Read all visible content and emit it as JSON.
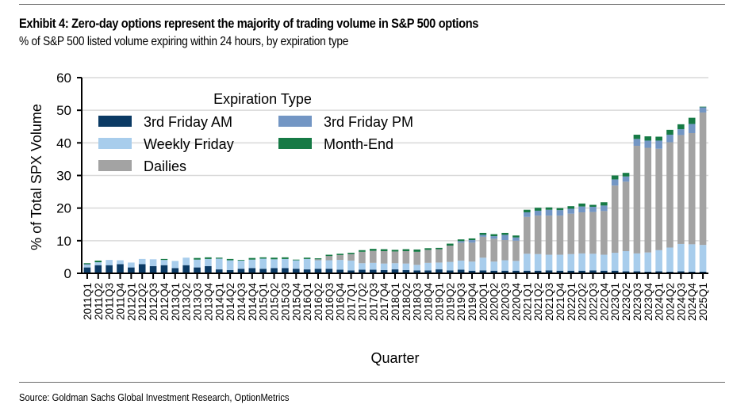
{
  "header": {
    "title": "Exhibit 4: Zero-day options represent the majority of trading volume in S&P 500 options",
    "subtitle": "% of S&P 500 listed volume expiring within 24 hours, by expiration type"
  },
  "footer": {
    "source": "Source: Goldman Sachs Global Investment Research, OptionMetrics"
  },
  "chart_data": {
    "type": "bar",
    "stacked": true,
    "title": "Exhibit 4: Zero-day options represent the majority of trading volume in S&P 500 options",
    "subtitle": "% of S&P 500 listed volume expiring within 24 hours, by expiration type",
    "xlabel": "Quarter",
    "ylabel": "% of Total SPX Volume",
    "ylim": [
      0,
      60
    ],
    "yticks": [
      0,
      10,
      20,
      30,
      40,
      50,
      60
    ],
    "grid": true,
    "legend": {
      "title": "Expiration Type",
      "placement": "top-left",
      "entries": [
        "3rd Friday AM",
        "3rd Friday PM",
        "Weekly Friday",
        "Month-End",
        "Dailies"
      ]
    },
    "colors": {
      "3rd Friday AM": "#0b3a64",
      "Weekly Friday": "#a8cdec",
      "Dailies": "#a3a3a3",
      "3rd Friday PM": "#7396c4",
      "Month-End": "#167a45"
    },
    "categories": [
      "2011Q1",
      "2011Q2",
      "2011Q3",
      "2011Q4",
      "2012Q1",
      "2012Q2",
      "2012Q3",
      "2012Q4",
      "2013Q1",
      "2013Q2",
      "2013Q3",
      "2013Q4",
      "2014Q1",
      "2014Q2",
      "2014Q3",
      "2014Q4",
      "2015Q1",
      "2015Q2",
      "2015Q3",
      "2015Q4",
      "2016Q1",
      "2016Q2",
      "2016Q3",
      "2016Q4",
      "2017Q1",
      "2017Q2",
      "2017Q3",
      "2017Q4",
      "2018Q1",
      "2018Q2",
      "2018Q3",
      "2018Q4",
      "2019Q1",
      "2019Q2",
      "2019Q3",
      "2019Q4",
      "2020Q1",
      "2020Q2",
      "2020Q3",
      "2020Q4",
      "2021Q1",
      "2021Q2",
      "2021Q3",
      "2021Q4",
      "2022Q1",
      "2022Q2",
      "2022Q3",
      "2022Q4",
      "2023Q1",
      "2023Q2",
      "2023Q3",
      "2023Q4",
      "2024Q1",
      "2024Q2",
      "2024Q3",
      "2024Q4",
      "2025Q1"
    ],
    "series": [
      {
        "name": "3rd Friday AM",
        "values": [
          1.8,
          2.5,
          2.5,
          2.8,
          1.8,
          2.8,
          2.2,
          2.5,
          1.6,
          2.5,
          1.8,
          2.2,
          1.2,
          1.0,
          1.4,
          1.6,
          1.4,
          1.6,
          1.6,
          1.4,
          1.2,
          1.4,
          1.4,
          1.1,
          0.9,
          1.1,
          1.1,
          1.0,
          1.2,
          1.0,
          0.9,
          0.9,
          1.2,
          0.9,
          1.1,
          0.8,
          0.9,
          0.8,
          0.8,
          0.8,
          0.8,
          0.8,
          0.9,
          0.8,
          0.8,
          0.8,
          0.9,
          0.8,
          0.8,
          0.6,
          0.6,
          0.5,
          0.6,
          0.5,
          0.6,
          0.5,
          0.5
        ]
      },
      {
        "name": "Weekly Friday",
        "values": [
          0.8,
          0.9,
          1.6,
          1.2,
          1.5,
          1.6,
          2.1,
          1.6,
          2.2,
          2.3,
          2.4,
          2.2,
          3.3,
          3.0,
          2.5,
          2.6,
          3.1,
          2.7,
          2.8,
          2.6,
          3.2,
          2.6,
          2.6,
          3.0,
          3.0,
          2.0,
          2.1,
          2.0,
          1.9,
          2.0,
          1.7,
          2.3,
          2.1,
          2.6,
          2.8,
          2.8,
          3.9,
          2.8,
          3.2,
          3.0,
          5.2,
          5.1,
          4.8,
          4.9,
          5.1,
          5.3,
          5.1,
          4.9,
          5.5,
          6.2,
          5.5,
          5.9,
          6.5,
          7.4,
          8.4,
          8.4,
          8.2
        ]
      },
      {
        "name": "Dailies",
        "values": [
          0.0,
          0.0,
          0.0,
          0.0,
          0.0,
          0.0,
          0.0,
          0.0,
          0.0,
          0.0,
          0.0,
          0.0,
          0.0,
          0.0,
          0.0,
          0.0,
          0.0,
          0.0,
          0.0,
          0.0,
          0.0,
          0.3,
          1.3,
          1.5,
          2.0,
          3.5,
          3.7,
          3.8,
          3.6,
          3.8,
          4.0,
          4.0,
          4.1,
          5.0,
          5.5,
          5.8,
          6.4,
          7.0,
          6.2,
          6.2,
          11.3,
          11.8,
          12.0,
          12.0,
          12.4,
          12.6,
          12.8,
          13.4,
          20.6,
          21.3,
          33.0,
          32.1,
          31.1,
          32.3,
          33.4,
          34.1,
          40.6
        ]
      },
      {
        "name": "3rd Friday PM",
        "values": [
          0.2,
          0.0,
          0.0,
          0.0,
          0.0,
          0.0,
          0.0,
          0.0,
          0.0,
          0.0,
          0.0,
          0.0,
          0.0,
          0.0,
          0.0,
          0.0,
          0.0,
          0.0,
          0.0,
          0.0,
          0.0,
          0.0,
          0.0,
          0.0,
          0.0,
          0.0,
          0.0,
          0.0,
          0.0,
          0.0,
          0.0,
          0.0,
          0.0,
          0.0,
          0.5,
          0.8,
          0.6,
          0.8,
          1.6,
          1.0,
          1.4,
          1.5,
          1.8,
          1.7,
          1.5,
          1.8,
          1.6,
          1.7,
          1.9,
          1.6,
          2.1,
          2.2,
          2.5,
          2.3,
          1.8,
          2.8,
          1.6
        ]
      },
      {
        "name": "Month-End",
        "values": [
          0.3,
          0.5,
          0.0,
          0.0,
          0.0,
          0.0,
          0.0,
          0.3,
          0.0,
          0.0,
          0.5,
          0.5,
          0.3,
          0.4,
          0.2,
          0.5,
          0.4,
          0.5,
          0.5,
          0.2,
          0.4,
          0.3,
          0.4,
          0.4,
          0.4,
          0.5,
          0.6,
          0.6,
          0.5,
          0.6,
          0.7,
          0.5,
          0.4,
          0.6,
          0.5,
          0.5,
          0.6,
          0.6,
          0.6,
          0.6,
          0.8,
          0.9,
          0.7,
          0.6,
          0.8,
          0.9,
          0.6,
          1.0,
          1.2,
          1.1,
          1.3,
          1.3,
          1.2,
          1.5,
          1.5,
          1.9,
          0.2
        ]
      }
    ]
  }
}
